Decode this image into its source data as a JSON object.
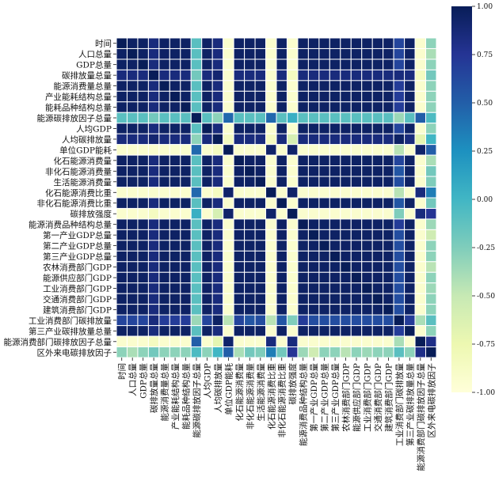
{
  "chart_data": {
    "type": "heatmap",
    "title": "",
    "colormap": "YlGnBu",
    "colorbar": {
      "range": [
        -1,
        1
      ],
      "ticks": [
        "1.00",
        "0.75",
        "0.50",
        "0.25",
        "0.00",
        "-0.25",
        "-0.50",
        "-0.75",
        "-1.00"
      ],
      "colors": [
        "#ffffd9",
        "#edf8b1",
        "#c7e9b4",
        "#7fcdbb",
        "#41b6c4",
        "#1d91c0",
        "#225ea8",
        "#253494",
        "#081d58"
      ]
    },
    "labels": [
      "时间",
      "人口总量",
      "GDP总量",
      "碳排放量总量",
      "能源消费量总量",
      "产业能耗结构总量",
      "能耗品种结构总量",
      "能源碳排放因子总量",
      "人均GDP",
      "人均碳排放量",
      "单位GDP能耗",
      "化石能源消费量",
      "非化石能源消费量",
      "生活能源消费量",
      "化石能源消费比重",
      "非化石能源消费比重",
      "碳排放强度",
      "能源消费品种结构总量",
      "第一产业GDP总量",
      "第二产业GDP总量",
      "第三产业GDP总量",
      "农林消费部门GDP",
      "能源供应部门GDP",
      "工业消费部门GDP",
      "交通消费部门GDP",
      "建筑消费部门GDP",
      "工业消费部门碳排放量",
      "第三产业碳排放量总量",
      "能源消费部门碳排放因子总量",
      "区外来电碳排放因子"
    ],
    "matrix": [
      [
        1,
        0.95,
        0.95,
        0.85,
        0.95,
        0.95,
        0.95,
        -0.1,
        0.95,
        0.85,
        -0.93,
        0.95,
        0.95,
        0.95,
        -0.93,
        0.95,
        -0.93,
        0.95,
        0.95,
        0.95,
        0.95,
        0.95,
        0.95,
        0.95,
        0.95,
        0.95,
        0.65,
        0.95,
        -0.93,
        -0.3
      ],
      [
        0.95,
        1,
        0.95,
        0.85,
        0.95,
        0.95,
        0.95,
        -0.1,
        0.95,
        0.85,
        -0.93,
        0.95,
        0.95,
        0.95,
        -0.93,
        0.95,
        -0.93,
        0.95,
        0.95,
        0.95,
        0.95,
        0.95,
        0.95,
        0.95,
        0.95,
        0.95,
        0.65,
        0.95,
        -0.93,
        -0.4
      ],
      [
        0.95,
        0.95,
        1,
        0.85,
        0.95,
        0.95,
        0.95,
        -0.1,
        0.95,
        0.85,
        -0.93,
        0.95,
        0.95,
        0.95,
        -0.93,
        0.95,
        -0.93,
        0.95,
        0.95,
        0.95,
        0.95,
        0.95,
        0.95,
        0.95,
        0.95,
        0.95,
        0.65,
        0.95,
        -0.93,
        -0.3
      ],
      [
        0.85,
        0.85,
        0.85,
        1,
        0.85,
        0.85,
        0.85,
        -0.2,
        0.85,
        0.9,
        -0.93,
        0.85,
        0.85,
        0.85,
        -0.93,
        0.85,
        -0.85,
        0.85,
        0.85,
        0.85,
        0.85,
        0.85,
        0.85,
        0.85,
        0.85,
        0.85,
        0.85,
        0.85,
        -0.85,
        -0.2
      ],
      [
        0.95,
        0.95,
        0.95,
        0.85,
        1,
        0.95,
        0.95,
        -0.1,
        0.95,
        0.85,
        -0.93,
        0.95,
        0.95,
        0.95,
        -0.93,
        0.95,
        -0.93,
        0.95,
        0.95,
        0.95,
        0.95,
        0.95,
        0.95,
        0.95,
        0.95,
        0.95,
        0.7,
        0.95,
        -0.93,
        -0.3
      ],
      [
        0.95,
        0.95,
        0.95,
        0.85,
        0.95,
        1,
        0.95,
        -0.1,
        0.95,
        0.85,
        -0.93,
        0.95,
        0.95,
        0.95,
        -0.93,
        0.95,
        -0.93,
        0.95,
        0.95,
        0.95,
        0.95,
        0.95,
        0.95,
        0.95,
        0.95,
        0.95,
        0.7,
        0.95,
        -0.93,
        -0.3
      ],
      [
        0.95,
        0.95,
        0.95,
        0.85,
        0.95,
        0.95,
        1,
        -0.1,
        0.95,
        0.85,
        -0.93,
        0.95,
        0.95,
        0.95,
        -0.93,
        0.95,
        -0.93,
        0.95,
        0.95,
        0.95,
        0.95,
        0.95,
        0.95,
        0.95,
        0.95,
        0.95,
        0.7,
        0.95,
        -0.93,
        -0.3
      ],
      [
        -0.1,
        -0.1,
        -0.1,
        -0.2,
        -0.1,
        -0.1,
        -0.1,
        1,
        -0.1,
        -0.3,
        0.45,
        -0.1,
        -0.1,
        -0.1,
        0.45,
        -0.1,
        0.05,
        -0.1,
        -0.1,
        -0.1,
        -0.1,
        -0.1,
        -0.1,
        -0.1,
        -0.1,
        -0.1,
        -0.35,
        -0.1,
        0.5,
        -0.05
      ],
      [
        0.95,
        0.95,
        0.95,
        0.85,
        0.95,
        0.95,
        0.95,
        -0.1,
        1,
        0.85,
        -0.93,
        0.95,
        0.95,
        0.95,
        -0.93,
        0.95,
        -0.93,
        0.95,
        0.95,
        0.95,
        0.95,
        0.95,
        0.95,
        0.95,
        0.95,
        0.95,
        0.65,
        0.95,
        -0.93,
        -0.3
      ],
      [
        0.85,
        0.85,
        0.85,
        0.9,
        0.85,
        0.85,
        0.85,
        -0.3,
        0.85,
        1,
        -0.85,
        0.85,
        0.85,
        0.85,
        -0.85,
        0.85,
        -0.6,
        0.85,
        0.85,
        0.85,
        0.85,
        0.85,
        0.85,
        0.85,
        0.85,
        0.85,
        0.95,
        0.85,
        -0.7,
        0
      ],
      [
        -0.93,
        -0.93,
        -0.93,
        -0.93,
        -0.93,
        -0.93,
        -0.93,
        0.45,
        -0.93,
        -0.85,
        1,
        -0.93,
        -0.93,
        -0.93,
        0.93,
        -0.93,
        0.93,
        -0.93,
        -0.93,
        -0.93,
        -0.93,
        -0.93,
        -0.93,
        -0.93,
        -0.93,
        -0.93,
        -0.45,
        -0.93,
        0.93,
        0.5
      ],
      [
        0.95,
        0.95,
        0.95,
        0.85,
        0.95,
        0.95,
        0.95,
        -0.1,
        0.95,
        0.85,
        -0.93,
        1,
        0.95,
        0.95,
        -0.93,
        0.95,
        -0.93,
        0.95,
        0.95,
        0.95,
        0.95,
        0.95,
        0.95,
        0.95,
        0.95,
        0.95,
        0.65,
        0.95,
        -0.93,
        -0.4
      ],
      [
        0.95,
        0.95,
        0.95,
        0.85,
        0.95,
        0.95,
        0.95,
        -0.1,
        0.95,
        0.85,
        -0.93,
        0.95,
        1,
        0.95,
        -0.93,
        0.95,
        -0.93,
        0.95,
        0.95,
        0.95,
        0.95,
        0.95,
        0.95,
        0.95,
        0.95,
        0.95,
        0.55,
        0.95,
        -0.93,
        -0.2
      ],
      [
        0.95,
        0.95,
        0.95,
        0.85,
        0.95,
        0.95,
        0.95,
        -0.1,
        0.95,
        0.85,
        -0.93,
        0.95,
        0.95,
        1,
        -0.93,
        0.95,
        -0.93,
        0.95,
        0.95,
        0.95,
        0.95,
        0.95,
        0.95,
        0.95,
        0.95,
        0.95,
        0.6,
        0.95,
        -0.93,
        -0.25
      ],
      [
        -0.93,
        -0.93,
        -0.93,
        -0.93,
        -0.93,
        -0.93,
        -0.93,
        0.45,
        -0.93,
        -0.85,
        0.93,
        -0.93,
        -0.93,
        -0.93,
        1,
        -0.93,
        0.93,
        -0.93,
        -0.93,
        -0.93,
        -0.93,
        -0.93,
        -0.93,
        -0.93,
        -0.93,
        -0.93,
        -0.45,
        -0.93,
        0.85,
        0.35
      ],
      [
        0.95,
        0.95,
        0.95,
        0.85,
        0.95,
        0.95,
        0.95,
        -0.1,
        0.95,
        0.85,
        -0.93,
        0.95,
        0.95,
        0.95,
        -0.93,
        1,
        -0.93,
        0.95,
        0.95,
        0.95,
        0.95,
        0.95,
        0.95,
        0.95,
        0.95,
        0.95,
        0.55,
        0.95,
        -0.93,
        -0.2
      ],
      [
        -0.93,
        -0.93,
        -0.93,
        -0.85,
        -0.93,
        -0.93,
        -0.93,
        0.05,
        -0.93,
        -0.6,
        0.93,
        -0.93,
        -0.93,
        -0.93,
        0.93,
        -0.93,
        1,
        -0.93,
        -0.93,
        -0.93,
        -0.93,
        -0.93,
        -0.93,
        -0.93,
        -0.93,
        -0.93,
        -0.25,
        -0.93,
        0.85,
        0.75
      ],
      [
        0.95,
        0.95,
        0.95,
        0.85,
        0.95,
        0.95,
        0.95,
        -0.1,
        0.95,
        0.85,
        -0.93,
        0.95,
        0.95,
        0.95,
        -0.93,
        0.95,
        -0.93,
        1,
        0.95,
        0.95,
        0.95,
        0.95,
        0.95,
        0.95,
        0.95,
        0.95,
        0.7,
        0.95,
        -0.93,
        -0.35
      ],
      [
        0.95,
        0.95,
        0.95,
        0.85,
        0.95,
        0.95,
        0.95,
        -0.1,
        0.95,
        0.85,
        -0.93,
        0.95,
        0.95,
        0.95,
        -0.93,
        0.95,
        -0.93,
        0.95,
        1,
        0.95,
        0.95,
        0.95,
        0.95,
        0.95,
        0.95,
        0.95,
        0.6,
        0.95,
        -0.93,
        -0.55
      ],
      [
        0.95,
        0.95,
        0.95,
        0.85,
        0.95,
        0.95,
        0.95,
        -0.1,
        0.95,
        0.85,
        -0.93,
        0.95,
        0.95,
        0.95,
        -0.93,
        0.95,
        -0.93,
        0.95,
        0.95,
        1,
        0.95,
        0.95,
        0.95,
        0.95,
        0.95,
        0.95,
        0.6,
        0.95,
        -0.93,
        -0.3
      ],
      [
        0.95,
        0.95,
        0.95,
        0.85,
        0.95,
        0.95,
        0.95,
        -0.1,
        0.95,
        0.85,
        -0.93,
        0.95,
        0.95,
        0.95,
        -0.93,
        0.95,
        -0.93,
        0.95,
        0.95,
        0.95,
        1,
        0.95,
        0.95,
        0.95,
        0.95,
        0.95,
        0.6,
        0.95,
        -0.93,
        -0.3
      ],
      [
        0.95,
        0.95,
        0.95,
        0.85,
        0.95,
        0.95,
        0.95,
        -0.1,
        0.95,
        0.85,
        -0.93,
        0.95,
        0.95,
        0.95,
        -0.93,
        0.95,
        -0.93,
        0.95,
        0.95,
        0.95,
        0.95,
        1,
        0.95,
        0.95,
        0.95,
        0.95,
        0.6,
        0.95,
        -0.93,
        -0.45
      ],
      [
        0.95,
        0.95,
        0.95,
        0.85,
        0.95,
        0.95,
        0.95,
        -0.1,
        0.95,
        0.85,
        -0.93,
        0.95,
        0.95,
        0.95,
        -0.93,
        0.95,
        -0.93,
        0.95,
        0.95,
        0.95,
        0.95,
        0.95,
        1,
        0.95,
        0.95,
        0.95,
        0.6,
        0.95,
        -0.93,
        -0.3
      ],
      [
        0.95,
        0.95,
        0.95,
        0.85,
        0.95,
        0.95,
        0.95,
        -0.1,
        0.95,
        0.85,
        -0.93,
        0.95,
        0.95,
        0.95,
        -0.93,
        0.95,
        -0.93,
        0.95,
        0.95,
        0.95,
        0.95,
        0.95,
        0.95,
        1,
        0.95,
        0.95,
        0.6,
        0.95,
        -0.93,
        -0.35
      ],
      [
        0.95,
        0.95,
        0.95,
        0.85,
        0.95,
        0.95,
        0.95,
        -0.1,
        0.95,
        0.85,
        -0.93,
        0.95,
        0.95,
        0.95,
        -0.93,
        0.95,
        -0.93,
        0.95,
        0.95,
        0.95,
        0.95,
        0.95,
        0.95,
        0.95,
        1,
        0.95,
        0.6,
        0.95,
        -0.93,
        -0.3
      ],
      [
        0.95,
        0.95,
        0.95,
        0.85,
        0.95,
        0.95,
        0.95,
        -0.1,
        0.95,
        0.85,
        -0.93,
        0.95,
        0.95,
        0.95,
        -0.93,
        0.95,
        -0.93,
        0.95,
        0.95,
        0.95,
        0.95,
        0.95,
        0.95,
        0.95,
        0.95,
        1,
        0.6,
        0.95,
        -0.93,
        -0.3
      ],
      [
        0.65,
        0.65,
        0.65,
        0.85,
        0.7,
        0.7,
        0.7,
        -0.35,
        0.65,
        0.95,
        -0.45,
        0.65,
        0.55,
        0.6,
        -0.45,
        0.55,
        -0.25,
        0.7,
        0.6,
        0.6,
        0.6,
        0.6,
        0.6,
        0.6,
        0.6,
        0.6,
        1,
        0.7,
        -0.4,
        -0.1
      ],
      [
        0.95,
        0.95,
        0.95,
        0.85,
        0.95,
        0.95,
        0.95,
        -0.1,
        0.95,
        0.85,
        -0.93,
        0.95,
        0.95,
        0.95,
        -0.93,
        0.95,
        -0.93,
        0.95,
        0.95,
        0.95,
        0.95,
        0.95,
        0.95,
        0.95,
        0.95,
        0.95,
        0.7,
        1,
        -0.93,
        -0.3
      ],
      [
        -0.93,
        -0.93,
        -0.93,
        -0.85,
        -0.93,
        -0.93,
        -0.93,
        0.5,
        -0.93,
        -0.7,
        0.93,
        -0.93,
        -0.93,
        -0.93,
        0.85,
        -0.93,
        0.85,
        -0.93,
        -0.93,
        -0.93,
        -0.93,
        -0.93,
        -0.93,
        -0.93,
        -0.93,
        -0.93,
        -0.4,
        -0.93,
        1,
        0.8
      ],
      [
        -0.3,
        -0.4,
        -0.3,
        -0.2,
        -0.3,
        -0.3,
        -0.3,
        -0.05,
        -0.3,
        0,
        0.5,
        -0.4,
        -0.2,
        -0.25,
        0.35,
        -0.2,
        0.75,
        -0.35,
        -0.55,
        -0.3,
        -0.3,
        -0.45,
        -0.3,
        -0.35,
        -0.3,
        -0.3,
        -0.1,
        -0.3,
        0.8,
        1
      ]
    ]
  }
}
